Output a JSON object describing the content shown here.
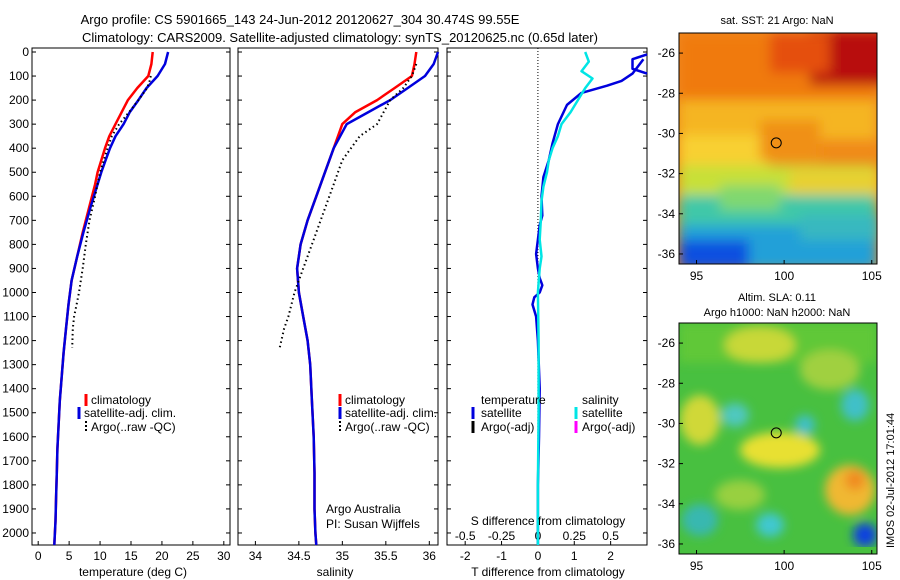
{
  "header": {
    "title_line1": "Argo profile: CS 5901665_143 24-Jun-2012 20120627_304 30.474S 99.55E",
    "title_line2": "Climatology: CARS2009. Satellite-adjusted climatology: synTS_20120625.nc (0.65d later)"
  },
  "colors": {
    "climatology": "#ff0000",
    "satellite": "#0000dd",
    "argo": "#000000",
    "satellite_salinity": "#00e5e5",
    "argo_salinity_adj": "#ff00ff"
  },
  "chart_data": [
    {
      "type": "line",
      "id": "temperature",
      "xlabel": "temperature (deg C)",
      "ylabel": "",
      "xlim": [
        -1,
        31
      ],
      "ylim": [
        2050,
        0
      ],
      "xticks": [
        "0",
        "5",
        "10",
        "15",
        "20",
        "25",
        "30"
      ],
      "xtick_values": [
        0,
        5,
        10,
        15,
        20,
        25,
        30
      ],
      "yticks": [
        "0",
        "100",
        "200",
        "300",
        "400",
        "500",
        "600",
        "700",
        "800",
        "900",
        "1000",
        "1100",
        "1200",
        "1300",
        "1400",
        "1500",
        "1600",
        "1700",
        "1800",
        "1900",
        "2000"
      ],
      "ytick_values": [
        0,
        100,
        200,
        300,
        400,
        500,
        600,
        700,
        800,
        900,
        1000,
        1100,
        1200,
        1300,
        1400,
        1500,
        1600,
        1700,
        1800,
        1900,
        2000
      ],
      "legend": [
        "climatology",
        "satellite-adj. clim.",
        "Argo(..raw -QC)"
      ],
      "series": [
        {
          "name": "climatology",
          "style": "solid",
          "color_key": "climatology",
          "x": [
            18.5,
            18.3,
            17.8,
            16,
            14.5,
            13.5,
            12.5,
            11.5,
            10.8,
            10.2,
            9.6,
            9.2,
            8.2,
            7.2,
            6.3,
            5.4,
            4.9,
            4.5,
            4.1,
            3.8,
            3.5,
            3.3,
            3.1,
            3.0,
            2.9,
            2.8,
            2.6
          ],
          "y": [
            0,
            50,
            100,
            150,
            200,
            250,
            300,
            350,
            400,
            450,
            500,
            550,
            650,
            750,
            850,
            950,
            1050,
            1150,
            1250,
            1350,
            1450,
            1550,
            1650,
            1750,
            1850,
            1950,
            2050
          ]
        },
        {
          "name": "satellite-adj. clim.",
          "style": "solid",
          "color_key": "satellite",
          "x": [
            21,
            20.5,
            19.3,
            17.5,
            16.2,
            14.8,
            13.8,
            12.5,
            11.6,
            10.9,
            10.2,
            9.6,
            8.4,
            7.3,
            6.3,
            5.4,
            4.9,
            4.5,
            4.1,
            3.8,
            3.5,
            3.3,
            3.1,
            3.0,
            2.9,
            2.8,
            2.6
          ],
          "y": [
            0,
            50,
            100,
            150,
            200,
            250,
            300,
            350,
            400,
            450,
            500,
            550,
            650,
            750,
            850,
            950,
            1050,
            1150,
            1250,
            1350,
            1450,
            1550,
            1650,
            1750,
            1850,
            1950,
            2050
          ]
        },
        {
          "name": "Argo(..raw -QC)",
          "style": "dotted",
          "color_key": "argo",
          "x": [
            18.2,
            18.0,
            17.6,
            16.2,
            14.7,
            13.1,
            11.9,
            11.2,
            10.6,
            10.0,
            9.6,
            9.2,
            8.3,
            7.7,
            7.2,
            6.6,
            6.2,
            5.8,
            5.6,
            5.5
          ],
          "y": [
            100,
            120,
            150,
            200,
            250,
            300,
            350,
            400,
            450,
            500,
            550,
            600,
            700,
            800,
            900,
            1000,
            1050,
            1100,
            1150,
            1230
          ]
        }
      ]
    },
    {
      "type": "line",
      "id": "salinity",
      "xlabel": "salinity",
      "ylabel": "",
      "xlim": [
        33.8,
        36.1
      ],
      "ylim": [
        2050,
        0
      ],
      "xticks": [
        "34",
        "34.5",
        "35",
        "35.5",
        "36"
      ],
      "xtick_values": [
        34,
        34.5,
        35,
        35.5,
        36
      ],
      "legend": [
        "climatology",
        "satellite-adj. clim.",
        "Argo(..raw -QC)"
      ],
      "annotations": [
        "Argo Australia",
        "PI: Susan Wijffels"
      ],
      "series": [
        {
          "name": "climatology",
          "style": "solid",
          "color_key": "climatology",
          "x": [
            35.85,
            35.83,
            35.8,
            35.6,
            35.4,
            35.15,
            35.0,
            34.9,
            34.8,
            34.7,
            34.6,
            34.52,
            34.48,
            34.5,
            34.55,
            34.6,
            34.63,
            34.65,
            34.67,
            34.68,
            34.68,
            34.69,
            34.7
          ],
          "y": [
            0,
            50,
            100,
            150,
            200,
            250,
            300,
            400,
            500,
            600,
            700,
            800,
            900,
            1000,
            1100,
            1200,
            1300,
            1450,
            1600,
            1750,
            1900,
            2000,
            2050
          ]
        },
        {
          "name": "satellite-adj. clim.",
          "style": "solid",
          "color_key": "satellite",
          "x": [
            36.1,
            36.05,
            35.95,
            35.75,
            35.55,
            35.3,
            35.05,
            34.9,
            34.8,
            34.7,
            34.6,
            34.52,
            34.48,
            34.5,
            34.55,
            34.6,
            34.63,
            34.65,
            34.67,
            34.68,
            34.68,
            34.69,
            34.7
          ],
          "y": [
            0,
            50,
            100,
            150,
            200,
            250,
            300,
            400,
            500,
            600,
            700,
            800,
            900,
            1000,
            1100,
            1200,
            1300,
            1450,
            1600,
            1750,
            1900,
            2000,
            2050
          ]
        },
        {
          "name": "Argo(..raw -QC)",
          "style": "dotted",
          "color_key": "argo",
          "x": [
            35.85,
            35.8,
            35.7,
            35.55,
            35.4,
            35.2,
            35.0,
            34.9,
            34.8,
            34.7,
            34.6,
            34.55,
            34.45,
            34.38,
            34.33,
            34.28
          ],
          "y": [
            50,
            100,
            150,
            200,
            300,
            350,
            450,
            550,
            650,
            750,
            850,
            900,
            1000,
            1100,
            1150,
            1230
          ]
        }
      ]
    },
    {
      "type": "line",
      "id": "difference",
      "xlabel": "T difference from climatology",
      "xlabel_top": "S difference from climatology",
      "xlim": [
        -2.5,
        3.0
      ],
      "ylim": [
        2050,
        0
      ],
      "xticks": [
        "-2",
        "-1",
        "0",
        "1",
        "2"
      ],
      "xtick_values": [
        -2,
        -1,
        0,
        1,
        2
      ],
      "sticks": [
        "-0.5",
        "-0.25",
        "0",
        "0.25",
        "0.5"
      ],
      "stick_values": [
        -0.5,
        -0.25,
        0,
        0.25,
        0.5
      ],
      "s_scale": 4,
      "legend_temperature_title": "temperature",
      "legend_salinity_title": "salinity",
      "legend_temperature": [
        "satellite",
        "Argo(-adj)"
      ],
      "legend_salinity": [
        "satellite",
        "Argo(-adj)"
      ],
      "series": [
        {
          "name": "temperature satellite",
          "style": "solid",
          "color_key": "satellite",
          "x": [
            2.9,
            2.6,
            2.3,
            1.9,
            1.2,
            0.8,
            0.55,
            0.4,
            0.3,
            0.15,
            0.1,
            0.12,
            0.05,
            0.0,
            -0.05,
            0.0,
            0.05,
            0.1,
            0.12,
            0.05,
            -0.1,
            -0.15,
            -0.05,
            0.0,
            0.05,
            0.03,
            0.0,
            0.0
          ],
          "y": [
            30,
            90,
            120,
            140,
            170,
            220,
            300,
            380,
            450,
            520,
            600,
            680,
            720,
            780,
            840,
            900,
            940,
            960,
            970,
            1000,
            1020,
            1050,
            1100,
            1200,
            1400,
            1600,
            1800,
            2050
          ]
        },
        {
          "name": "salinity satellite",
          "style": "solid",
          "color_key": "satellite_salinity",
          "x": [
            1.3,
            1.4,
            1.2,
            1.5,
            1.3,
            1.1,
            0.9,
            0.65,
            0.55,
            0.4,
            0.3,
            0.25,
            0.15,
            0.1,
            0.08,
            0.05,
            0.1,
            0.05,
            0.0,
            0.02,
            0.02,
            0.0,
            0.0
          ],
          "y": [
            0,
            40,
            80,
            110,
            150,
            200,
            250,
            300,
            350,
            400,
            450,
            500,
            560,
            620,
            700,
            780,
            850,
            900,
            1000,
            1200,
            1500,
            1800,
            2050
          ]
        },
        {
          "name": "salinity satellite outlier",
          "style": "solid",
          "color_key": "satellite",
          "x": [
            3.0,
            2.6,
            2.6,
            3.0
          ],
          "y": [
            10,
            30,
            70,
            90
          ]
        }
      ]
    }
  ],
  "maps": {
    "sst": {
      "title": "sat. SST: 21 Argo: NaN",
      "xticks": [
        "95",
        "100",
        "105"
      ],
      "yticks": [
        "-26",
        "-28",
        "-30",
        "-32",
        "-34",
        "-36"
      ],
      "lon_range": [
        94,
        105.3
      ],
      "lat_range": [
        -36.5,
        -25
      ],
      "argo_point": {
        "lon": 99.55,
        "lat": -30.47
      }
    },
    "sla": {
      "title_line1": "Altim. SLA: 0.11",
      "title_line2": "Argo h1000: NaN h2000: NaN",
      "xticks": [
        "95",
        "100",
        "105"
      ],
      "yticks": [
        "-26",
        "-28",
        "-30",
        "-32",
        "-34",
        "-36"
      ],
      "lon_range": [
        94,
        105.3
      ],
      "lat_range": [
        -36.5,
        -25
      ],
      "argo_point": {
        "lon": 99.55,
        "lat": -30.47
      }
    }
  },
  "footer": {
    "stamp": "IMOS 02-Jul-2012 17:01:44"
  }
}
